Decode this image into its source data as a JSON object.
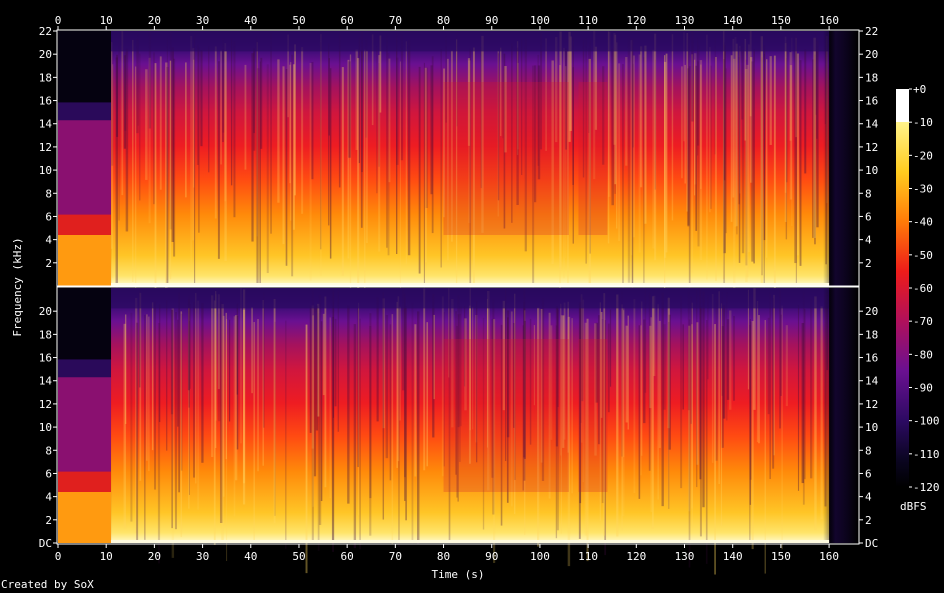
{
  "chart_data": {
    "type": "heatmap",
    "title": "",
    "xlabel": "Time (s)",
    "ylabel": "Frequency (kHz)",
    "xlim": [
      0,
      166
    ],
    "ylim_khz": [
      0,
      22
    ],
    "x_ticks": [
      "0",
      "10",
      "20",
      "30",
      "40",
      "50",
      "60",
      "70",
      "80",
      "90",
      "100",
      "110",
      "120",
      "130",
      "140",
      "150",
      "160"
    ],
    "y_ticks_top": [
      "2",
      "4",
      "6",
      "8",
      "10",
      "12",
      "14",
      "16",
      "18",
      "20",
      "22"
    ],
    "y_ticks_bottom": [
      "DC",
      "2",
      "4",
      "6",
      "8",
      "10",
      "12",
      "14",
      "16",
      "18",
      "20"
    ],
    "channels": [
      "left",
      "right"
    ],
    "colorbar": {
      "label": "dBFS",
      "ticks": [
        "+0",
        "-10",
        "-20",
        "-30",
        "-40",
        "-50",
        "-60",
        "-70",
        "-80",
        "-90",
        "-100",
        "-110",
        "-120"
      ],
      "range_db": [
        -120,
        0
      ],
      "stops": [
        {
          "db": 0,
          "color": "#ffffff"
        },
        {
          "db": -10,
          "color": "#fff38a"
        },
        {
          "db": -25,
          "color": "#ffcc1f"
        },
        {
          "db": -40,
          "color": "#ff7b08"
        },
        {
          "db": -55,
          "color": "#ee1c1a"
        },
        {
          "db": -70,
          "color": "#b0105b"
        },
        {
          "db": -85,
          "color": "#6a1091"
        },
        {
          "db": -100,
          "color": "#2c0a62"
        },
        {
          "db": -112,
          "color": "#0a0520"
        },
        {
          "db": -120,
          "color": "#000000"
        }
      ]
    },
    "music_span_s": [
      11,
      160
    ],
    "quiet_segments_s": [
      [
        80,
        106
      ],
      [
        108,
        114
      ]
    ]
  },
  "footer": {
    "credit": "Created by SoX"
  }
}
